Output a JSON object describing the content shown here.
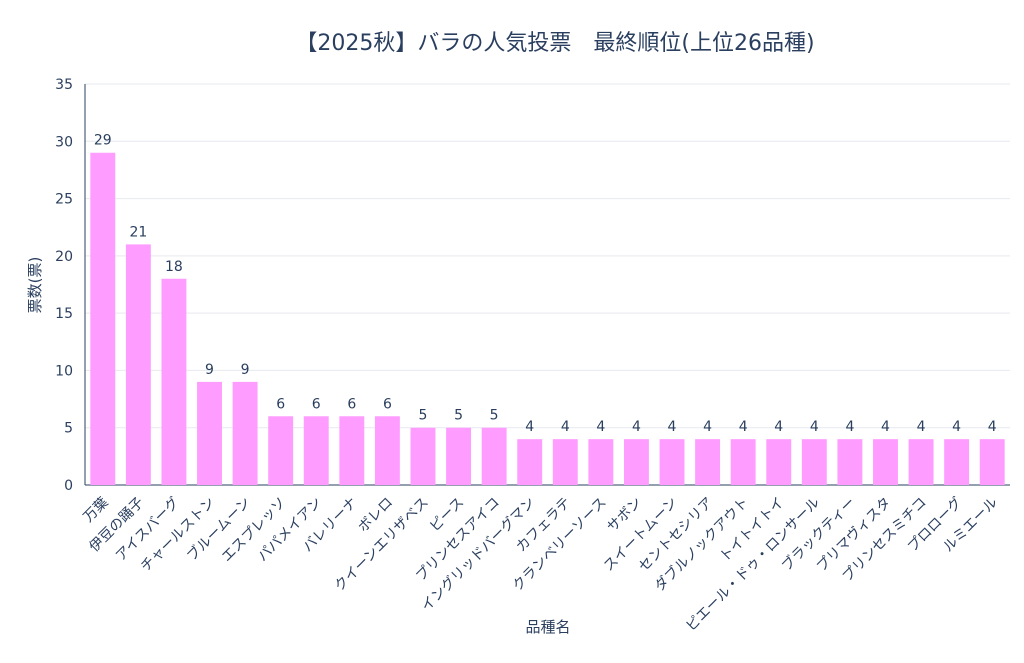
{
  "chart_data": {
    "type": "bar",
    "title": "【2025秋】バラの人気投票　最終順位(上位26品種)",
    "xlabel": "品種名",
    "ylabel": "票数(票)",
    "ylim": [
      0,
      35
    ],
    "yticks": [
      0,
      5,
      10,
      15,
      20,
      25,
      30,
      35
    ],
    "grid": true,
    "bar_color": "#ff9cff",
    "categories": [
      "万葉",
      "伊豆の踊子",
      "アイスバーグ",
      "チャールストン",
      "ブルームーン",
      "エスプレッソ",
      "パパメイアン",
      "バレリーナ",
      "ボレロ",
      "クイーンエリザベス",
      "ピース",
      "プリンセスアイコ",
      "イングリッドバーグマン",
      "カフェラテ",
      "クランベリーソース",
      "サボン",
      "スイートムーン",
      "セントセシリア",
      "ダブルノックアウト",
      "トイトイトイ",
      "ピエール・ドゥ・ロンサール",
      "ブラックティー",
      "プリマヴィスタ",
      "プリンセスミチコ",
      "プロローグ",
      "ルミエール"
    ],
    "values": [
      29,
      21,
      18,
      9,
      9,
      6,
      6,
      6,
      6,
      5,
      5,
      5,
      4,
      4,
      4,
      4,
      4,
      4,
      4,
      4,
      4,
      4,
      4,
      4,
      4,
      4
    ]
  }
}
